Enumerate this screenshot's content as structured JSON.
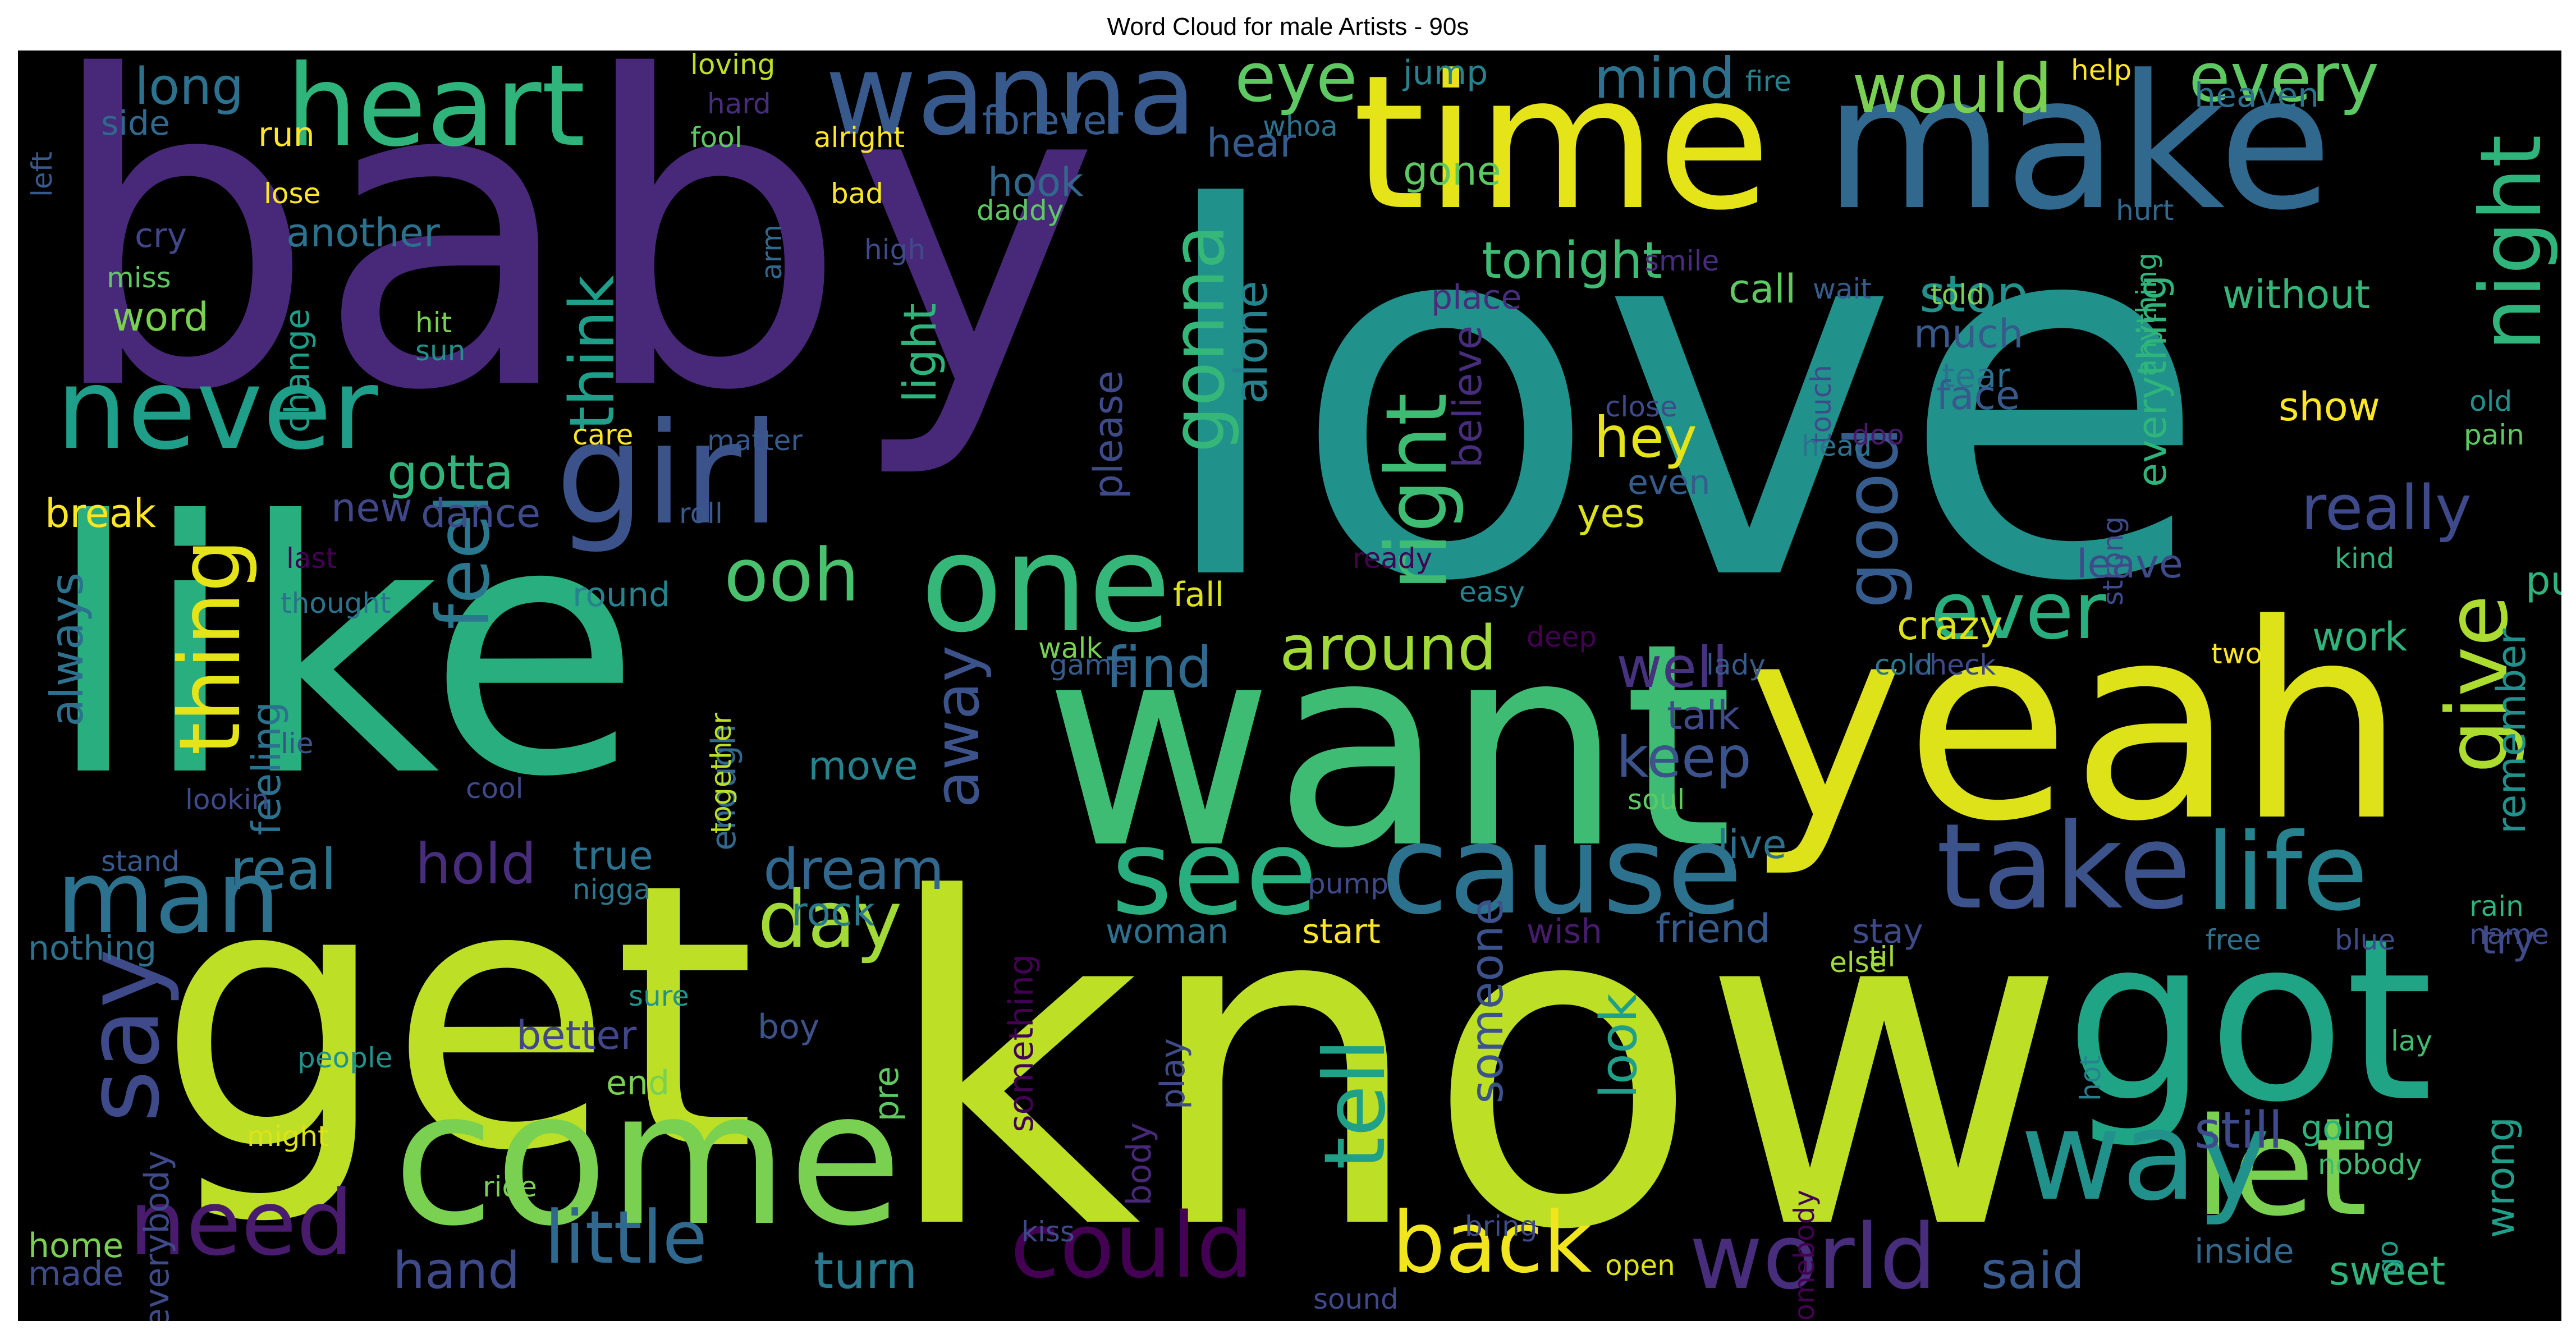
{
  "title": "Word Cloud for male Artists - 90s",
  "background": "#000000",
  "words": [
    {
      "text": "love",
      "color": "#21918c"
    },
    {
      "text": "know",
      "color": "#bddf26"
    },
    {
      "text": "baby",
      "color": "#482878"
    },
    {
      "text": "like",
      "color": "#29af7f"
    },
    {
      "text": "get",
      "color": "#bddf26"
    },
    {
      "text": "want",
      "color": "#3fbc73"
    },
    {
      "text": "yeah",
      "color": "#dde318"
    },
    {
      "text": "make",
      "color": "#31688e"
    },
    {
      "text": "time",
      "color": "#e5e419"
    },
    {
      "text": "got",
      "color": "#20a486"
    },
    {
      "text": "come",
      "color": "#7ad151"
    },
    {
      "text": "one",
      "color": "#35b779"
    },
    {
      "text": "girl",
      "color": "#3b528b"
    },
    {
      "text": "wanna",
      "color": "#38598c"
    },
    {
      "text": "heart",
      "color": "#2fb47c"
    },
    {
      "text": "never",
      "color": "#1f9e89"
    },
    {
      "text": "cause",
      "color": "#2c728e"
    },
    {
      "text": "see",
      "color": "#29af7f"
    },
    {
      "text": "take",
      "color": "#3b528b"
    },
    {
      "text": "life",
      "color": "#26828e"
    },
    {
      "text": "let",
      "color": "#7ad151"
    },
    {
      "text": "way",
      "color": "#21918c"
    },
    {
      "text": "say",
      "color": "#3e4a89"
    },
    {
      "text": "man",
      "color": "#2c728e"
    },
    {
      "text": "need",
      "color": "#481b6d"
    },
    {
      "text": "little",
      "color": "#31688e"
    },
    {
      "text": "could",
      "color": "#440154"
    },
    {
      "text": "world",
      "color": "#472d7b"
    },
    {
      "text": "back",
      "color": "#f1e51d"
    },
    {
      "text": "tell",
      "color": "#1fa187"
    },
    {
      "text": "day",
      "color": "#a2da37"
    },
    {
      "text": "feel",
      "color": "#2a788e"
    },
    {
      "text": "thing",
      "color": "#e5e419"
    },
    {
      "text": "right",
      "color": "#3fbc73"
    },
    {
      "text": "night",
      "color": "#2fb47c"
    },
    {
      "text": "give",
      "color": "#addc30"
    },
    {
      "text": "ever",
      "color": "#29af7f"
    },
    {
      "text": "ooh",
      "color": "#4ac16d"
    },
    {
      "text": "gonna",
      "color": "#35b779"
    },
    {
      "text": "good",
      "color": "#365c8d"
    },
    {
      "text": "eye",
      "color": "#5ec962"
    },
    {
      "text": "would",
      "color": "#7ad151"
    },
    {
      "text": "every",
      "color": "#5ec962"
    },
    {
      "text": "mind",
      "color": "#2c728e"
    },
    {
      "text": "think",
      "color": "#1f9e89"
    },
    {
      "text": "away",
      "color": "#3b528b"
    },
    {
      "text": "around",
      "color": "#a2da37"
    },
    {
      "text": "hey",
      "color": "#e5e419"
    },
    {
      "text": "really",
      "color": "#3e4a89"
    },
    {
      "text": "find",
      "color": "#31688e"
    },
    {
      "text": "keep",
      "color": "#3b528b"
    },
    {
      "text": "well",
      "color": "#46327e"
    },
    {
      "text": "hold",
      "color": "#472d7b"
    },
    {
      "text": "real",
      "color": "#2c728e"
    },
    {
      "text": "dream",
      "color": "#31688e"
    },
    {
      "text": "hand",
      "color": "#3e4a89"
    },
    {
      "text": "turn",
      "color": "#2a788e"
    },
    {
      "text": "said",
      "color": "#38598c"
    },
    {
      "text": "still",
      "color": "#3e4a89"
    },
    {
      "text": "gotta",
      "color": "#2fb47c"
    },
    {
      "text": "alone",
      "color": "#26828e"
    },
    {
      "text": "light",
      "color": "#2fb47c"
    },
    {
      "text": "believe",
      "color": "#472d7b"
    },
    {
      "text": "tonight",
      "color": "#3fbc73"
    },
    {
      "text": "stop",
      "color": "#21918c"
    },
    {
      "text": "long",
      "color": "#2c728e"
    },
    {
      "text": "always",
      "color": "#2c728e"
    },
    {
      "text": "feeling",
      "color": "#2c728e"
    },
    {
      "text": "dance",
      "color": "#3e4a89"
    },
    {
      "text": "break",
      "color": "#fde725"
    },
    {
      "text": "new",
      "color": "#404688"
    },
    {
      "text": "true",
      "color": "#2c728e"
    },
    {
      "text": "move",
      "color": "#26828e"
    },
    {
      "text": "someone",
      "color": "#3b528b"
    },
    {
      "text": "look",
      "color": "#1f9e89"
    },
    {
      "text": "crazy",
      "color": "#dde318"
    },
    {
      "text": "hear",
      "color": "#365c8d"
    },
    {
      "text": "forever",
      "color": "#365c8d"
    },
    {
      "text": "another",
      "color": "#2c728e"
    },
    {
      "text": "jump",
      "color": "#26828e"
    },
    {
      "text": "hook",
      "color": "#31688e"
    },
    {
      "text": "cry",
      "color": "#404688"
    },
    {
      "text": "word",
      "color": "#7ad151"
    },
    {
      "text": "run",
      "color": "#fde725"
    },
    {
      "text": "side",
      "color": "#31688e"
    },
    {
      "text": "heaven",
      "color": "#2c728e"
    },
    {
      "text": "without",
      "color": "#35b779"
    },
    {
      "text": "call",
      "color": "#5ec962"
    },
    {
      "text": "much",
      "color": "#38598c"
    },
    {
      "text": "tear",
      "color": "#2c728e"
    },
    {
      "text": "face",
      "color": "#38598c"
    },
    {
      "text": "show",
      "color": "#fde725"
    },
    {
      "text": "leave",
      "color": "#3e4a89"
    },
    {
      "text": "put",
      "color": "#2fb47c"
    },
    {
      "text": "work",
      "color": "#2fb47c"
    },
    {
      "text": "talk",
      "color": "#3e4a89"
    },
    {
      "text": "live",
      "color": "#2c728e"
    },
    {
      "text": "friend",
      "color": "#365c8d"
    },
    {
      "text": "start",
      "color": "#fde725"
    },
    {
      "text": "woman",
      "color": "#2c728e"
    },
    {
      "text": "boy",
      "color": "#3b528b"
    },
    {
      "text": "better",
      "color": "#404688"
    },
    {
      "text": "end",
      "color": "#7ad151"
    },
    {
      "text": "nothing",
      "color": "#2c728e"
    },
    {
      "text": "round",
      "color": "#26828e"
    },
    {
      "text": "fall",
      "color": "#dde318"
    },
    {
      "text": "please",
      "color": "#3e4a89"
    },
    {
      "text": "everything",
      "color": "#2fb47c"
    },
    {
      "text": "remember",
      "color": "#21918c"
    },
    {
      "text": "going",
      "color": "#2fb47c"
    },
    {
      "text": "wrong",
      "color": "#1f9e89"
    },
    {
      "text": "sweet",
      "color": "#2fb47c"
    },
    {
      "text": "inside",
      "color": "#31688e"
    },
    {
      "text": "try",
      "color": "#3e4a89"
    },
    {
      "text": "rock",
      "color": "#2a788e"
    },
    {
      "text": "wish",
      "color": "#481b6d"
    },
    {
      "text": "stay",
      "color": "#3e4a89"
    },
    {
      "text": "even",
      "color": "#365c8d"
    },
    {
      "text": "yes",
      "color": "#dde318"
    },
    {
      "text": "place",
      "color": "#472d7b"
    },
    {
      "text": "gone",
      "color": "#5ec962"
    },
    {
      "text": "everybody",
      "color": "#3e4a89"
    },
    {
      "text": "home",
      "color": "#7ad151"
    },
    {
      "text": "made",
      "color": "#3e4a89"
    },
    {
      "text": "play",
      "color": "#3e4a89"
    },
    {
      "text": "body",
      "color": "#482878"
    },
    {
      "text": "pre",
      "color": "#5ec962"
    },
    {
      "text": "something",
      "color": "#440154"
    },
    {
      "text": "change",
      "color": "#1f9e89"
    },
    {
      "text": "enough",
      "color": "#31688e"
    },
    {
      "text": "loving",
      "color": "#bddf26"
    },
    {
      "text": "alright",
      "color": "#fde725"
    },
    {
      "text": "fool",
      "color": "#5ec962"
    },
    {
      "text": "bad",
      "color": "#fde725"
    },
    {
      "text": "lose",
      "color": "#fde725"
    },
    {
      "text": "daddy",
      "color": "#5ec962"
    },
    {
      "text": "high",
      "color": "#3e4a89"
    },
    {
      "text": "hit",
      "color": "#7ad151"
    },
    {
      "text": "sun",
      "color": "#21918c"
    },
    {
      "text": "care",
      "color": "#fde725"
    },
    {
      "text": "matter",
      "color": "#38598c"
    },
    {
      "text": "miss",
      "color": "#5ec962"
    },
    {
      "text": "hard",
      "color": "#472d7b"
    },
    {
      "text": "fire",
      "color": "#26828e"
    },
    {
      "text": "whoa",
      "color": "#2c728e"
    },
    {
      "text": "help",
      "color": "#fde725"
    },
    {
      "text": "anything",
      "color": "#2fb47c"
    },
    {
      "text": "hurt",
      "color": "#31688e"
    },
    {
      "text": "old",
      "color": "#21918c"
    },
    {
      "text": "pain",
      "color": "#5ec962"
    },
    {
      "text": "kind",
      "color": "#2fb47c"
    },
    {
      "text": "close",
      "color": "#3e4a89"
    },
    {
      "text": "touch",
      "color": "#3e4a89"
    },
    {
      "text": "head",
      "color": "#2c728e"
    },
    {
      "text": "doo",
      "color": "#481b6d"
    },
    {
      "text": "strong",
      "color": "#3e4a89"
    },
    {
      "text": "ready",
      "color": "#440154"
    },
    {
      "text": "easy",
      "color": "#26828e"
    },
    {
      "text": "deep",
      "color": "#440154"
    },
    {
      "text": "lady",
      "color": "#38598c"
    },
    {
      "text": "cold",
      "color": "#2a788e"
    },
    {
      "text": "check",
      "color": "#3e4a89"
    },
    {
      "text": "two",
      "color": "#fde725"
    },
    {
      "text": "soul",
      "color": "#5ec962"
    },
    {
      "text": "cool",
      "color": "#3e4a89"
    },
    {
      "text": "lookin",
      "color": "#3e4a89"
    },
    {
      "text": "lie",
      "color": "#3b528b"
    },
    {
      "text": "game",
      "color": "#365c8d"
    },
    {
      "text": "together",
      "color": "#bddf26"
    },
    {
      "text": "walk",
      "color": "#7ad151"
    },
    {
      "text": "stand",
      "color": "#38598c"
    },
    {
      "text": "nigga",
      "color": "#2a788e"
    },
    {
      "text": "sure",
      "color": "#21918c"
    },
    {
      "text": "people",
      "color": "#21918c"
    },
    {
      "text": "might",
      "color": "#dde318"
    },
    {
      "text": "ride",
      "color": "#7ad151"
    },
    {
      "text": "last",
      "color": "#440154"
    },
    {
      "text": "thought",
      "color": "#2c728e"
    },
    {
      "text": "roll",
      "color": "#38598c"
    },
    {
      "text": "left",
      "color": "#38598c"
    },
    {
      "text": "smile",
      "color": "#472d7b"
    },
    {
      "text": "wait",
      "color": "#365c8d"
    },
    {
      "text": "told",
      "color": "#7ad151"
    },
    {
      "text": "arm",
      "color": "#31688e"
    },
    {
      "text": "pump",
      "color": "#3e4a89"
    },
    {
      "text": "til",
      "color": "#a2da37"
    },
    {
      "text": "else",
      "color": "#a2da37"
    },
    {
      "text": "free",
      "color": "#2c728e"
    },
    {
      "text": "blue",
      "color": "#3e4a89"
    },
    {
      "text": "rain",
      "color": "#2fb47c"
    },
    {
      "text": "name",
      "color": "#3e4a89"
    },
    {
      "text": "lay",
      "color": "#3fbc73"
    },
    {
      "text": "hot",
      "color": "#26828e"
    },
    {
      "text": "nobody",
      "color": "#3fbc73"
    },
    {
      "text": "go",
      "color": "#1f9e89"
    },
    {
      "text": "somebody",
      "color": "#440154"
    },
    {
      "text": "kiss",
      "color": "#3e4a89"
    },
    {
      "text": "bring",
      "color": "#3e4a89"
    },
    {
      "text": "open",
      "color": "#dde318"
    },
    {
      "text": "sound",
      "color": "#3e4a89"
    }
  ]
}
